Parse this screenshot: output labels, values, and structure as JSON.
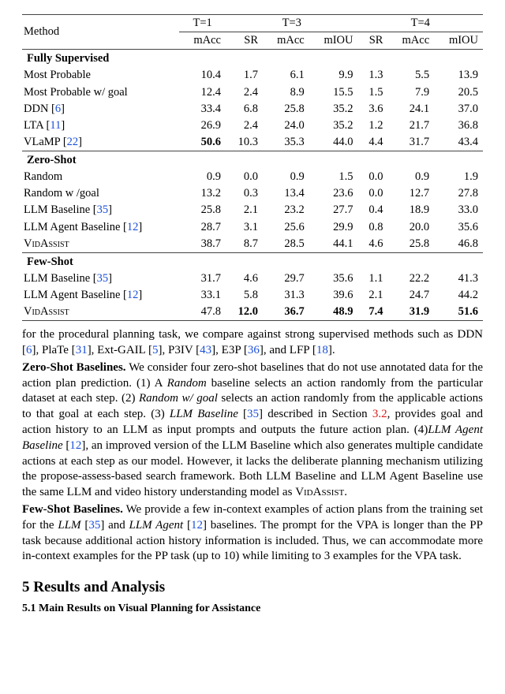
{
  "table": {
    "head": {
      "method": "Method",
      "t1": "T=1",
      "t3": "T=3",
      "t4": "T=4",
      "macc": "mAcc",
      "sr": "SR",
      "miou": "mIOU"
    },
    "sections": [
      {
        "title": "Fully Supervised",
        "rows": [
          {
            "m": "Most Probable",
            "refs": [],
            "v": [
              "10.4",
              "1.7",
              "6.1",
              "9.9",
              "1.3",
              "5.5",
              "13.9"
            ]
          },
          {
            "m": "Most Probable w/ goal",
            "refs": [],
            "v": [
              "12.4",
              "2.4",
              "8.9",
              "15.5",
              "1.5",
              "7.9",
              "20.5"
            ]
          },
          {
            "m": "DDN",
            "refs": [
              "6"
            ],
            "v": [
              "33.4",
              "6.8",
              "25.8",
              "35.2",
              "3.6",
              "24.1",
              "37.0"
            ]
          },
          {
            "m": "LTA",
            "refs": [
              "11"
            ],
            "v": [
              "26.9",
              "2.4",
              "24.0",
              "35.2",
              "1.2",
              "21.7",
              "36.8"
            ]
          },
          {
            "m": "VLaMP",
            "refs": [
              "22"
            ],
            "v": [
              "50.6",
              "10.3",
              "35.3",
              "44.0",
              "4.4",
              "31.7",
              "43.4"
            ],
            "bold": [
              0
            ]
          }
        ]
      },
      {
        "title": "Zero-Shot",
        "rows": [
          {
            "m": "Random",
            "refs": [],
            "v": [
              "0.9",
              "0.0",
              "0.9",
              "1.5",
              "0.0",
              "0.9",
              "1.9"
            ]
          },
          {
            "m": "Random w /goal",
            "refs": [],
            "v": [
              "13.2",
              "0.3",
              "13.4",
              "23.6",
              "0.0",
              "12.7",
              "27.8"
            ]
          },
          {
            "m": "LLM Baseline",
            "refs": [
              "35"
            ],
            "v": [
              "25.8",
              "2.1",
              "23.2",
              "27.7",
              "0.4",
              "18.9",
              "33.0"
            ]
          },
          {
            "m": "LLM Agent Baseline",
            "refs": [
              "12"
            ],
            "v": [
              "28.7",
              "3.1",
              "25.6",
              "29.9",
              "0.8",
              "20.0",
              "35.6"
            ]
          },
          {
            "m": "VidAssist",
            "smallcaps": true,
            "refs": [],
            "v": [
              "38.7",
              "8.7",
              "28.5",
              "44.1",
              "4.6",
              "25.8",
              "46.8"
            ]
          }
        ]
      },
      {
        "title": "Few-Shot",
        "rows": [
          {
            "m": "LLM Baseline",
            "refs": [
              "35"
            ],
            "v": [
              "31.7",
              "4.6",
              "29.7",
              "35.6",
              "1.1",
              "22.2",
              "41.3"
            ]
          },
          {
            "m": "LLM Agent Baseline",
            "refs": [
              "12"
            ],
            "v": [
              "33.1",
              "5.8",
              "31.3",
              "39.6",
              "2.1",
              "24.7",
              "44.2"
            ]
          },
          {
            "m": "VidAssist",
            "smallcaps": true,
            "refs": [],
            "v": [
              "47.8",
              "12.0",
              "36.7",
              "48.9",
              "7.4",
              "31.9",
              "51.6"
            ],
            "bold": [
              1,
              2,
              3,
              4,
              5,
              6
            ]
          }
        ]
      }
    ]
  },
  "body": {
    "p1a": "for the procedural planning task, we compare against strong supervised methods such as DDN [",
    "p1b": "], PlaTe [",
    "p1c": "], Ext-GAIL [",
    "p1d": "], P3IV [",
    "p1e": "], E3P [",
    "p1f": "], and LFP [",
    "p1g": "].",
    "r6": "6",
    "r31": "31",
    "r5": "5",
    "r43": "43",
    "r36": "36",
    "r18": "18",
    "zs_head": "Zero-Shot Baselines.",
    "zs1": " We consider four zero-shot baselines that do not use annotated data for the action plan prediction. (1) A ",
    "zs_random": "Random",
    "zs2": " baseline selects an action randomly from the particular dataset at each step. (2) ",
    "zs_randomg": "Random w/ goal",
    "zs3": " selects an action randomly from the applicable actions to that goal at each step. (3) ",
    "zs_llm": "LLM Baseline",
    "zs4": " [",
    "r35": "35",
    "zs5": "] described in Section ",
    "sec32": "3.2",
    "zs6": ", provides goal and action history to an LLM as input prompts and outputs the future action plan. (4)",
    "zs_llma": "LLM Agent Baseline",
    "zs7": " [",
    "r12": "12",
    "zs8": "], an improved version of the LLM Baseline which also generates multiple candidate actions at each step as our model. However, it lacks the deliberate planning mechanism utilizing the propose-assess-based search framework. Both LLM Baseline and LLM Agent Baseline use the same LLM and video history understanding model as ",
    "vidassist": "VidAssist",
    "zs9": ".",
    "fs_head": "Few-Shot Baselines.",
    "fs1": " We provide a few in-context examples of action plans from the training set for the ",
    "fs_llm": "LLM",
    "fs2": " [",
    "fs3": "] and ",
    "fs_llma": "LLM Agent",
    "fs4": " [",
    "fs5": "] baselines. The prompt for the VPA is longer than the PP task because additional action history information is included. Thus, we can accommodate more in-context examples for the PP task (up to 10) while limiting to 3 examples for the VPA task.",
    "sec5": "5   Results and Analysis",
    "sec51": "5.1   Main Results on Visual Planning for Assistance"
  }
}
